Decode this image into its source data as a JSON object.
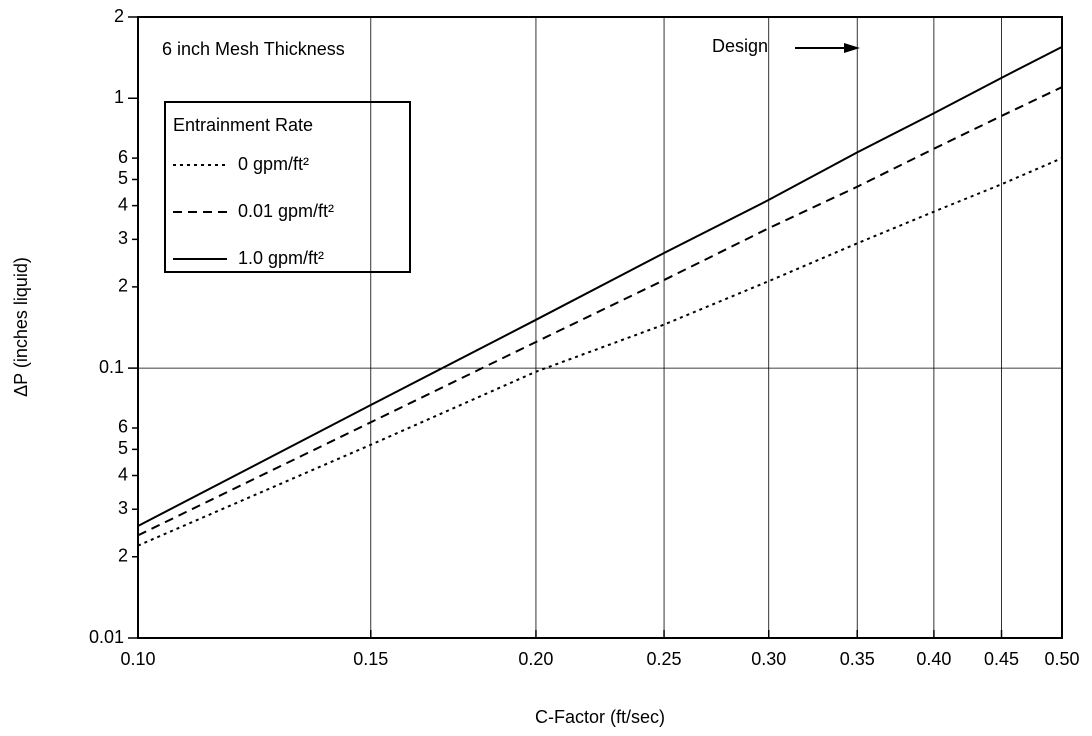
{
  "chart_data": {
    "type": "line",
    "title": "6 inch Mesh Thickness",
    "x_label": "C-Factor (ft/sec)",
    "y_label": "ΔP (inches liquid)",
    "legend_title": "Entrainment Rate",
    "annotation": "Design",
    "xscale": "log",
    "yscale": "log",
    "grid": true,
    "legend": "upper left",
    "xlim": [
      0.1,
      0.5
    ],
    "ylim": [
      0.01,
      2
    ],
    "xticks": [
      {
        "value": 0.1,
        "label": "0.10"
      },
      0.15,
      {
        "value": 0.2,
        "label": "0.20"
      },
      0.25,
      {
        "value": 0.3,
        "label": "0.30"
      },
      0.35,
      {
        "value": 0.4,
        "label": "0.40"
      },
      0.45,
      {
        "value": 0.5,
        "label": "0.50"
      }
    ],
    "yticks": [
      0.01,
      {
        "value": 0.02,
        "label": "2"
      },
      {
        "value": 0.03,
        "label": "3"
      },
      {
        "value": 0.04,
        "label": "4"
      },
      {
        "value": 0.05,
        "label": "5"
      },
      {
        "value": 0.06,
        "label": "6"
      },
      0.1,
      {
        "value": 0.2,
        "label": "2"
      },
      {
        "value": 0.3,
        "label": "3"
      },
      {
        "value": 0.4,
        "label": "4"
      },
      {
        "value": 0.5,
        "label": "5"
      },
      {
        "value": 0.6,
        "label": "6"
      },
      1,
      2
    ],
    "x": [
      0.1,
      0.15,
      0.2,
      0.25,
      0.3,
      0.35,
      0.4,
      0.45,
      0.5
    ],
    "series": [
      {
        "name": "0 gpm/ft²",
        "color": "#000000",
        "dash": "dotted",
        "values": [
          0.022,
          0.052,
          0.097,
          0.145,
          0.21,
          0.29,
          0.38,
          0.48,
          0.6
        ]
      },
      {
        "name": "0.01 gpm/ft²",
        "color": "#000000",
        "dash": "dashed",
        "values": [
          0.024,
          0.063,
          0.125,
          0.212,
          0.33,
          0.47,
          0.65,
          0.86,
          1.1
        ]
      },
      {
        "name": "1.0 gpm/ft²",
        "color": "#000000",
        "dash": "solid",
        "values": [
          0.026,
          0.073,
          0.151,
          0.267,
          0.42,
          0.63,
          0.88,
          1.19,
          1.55
        ]
      }
    ]
  }
}
